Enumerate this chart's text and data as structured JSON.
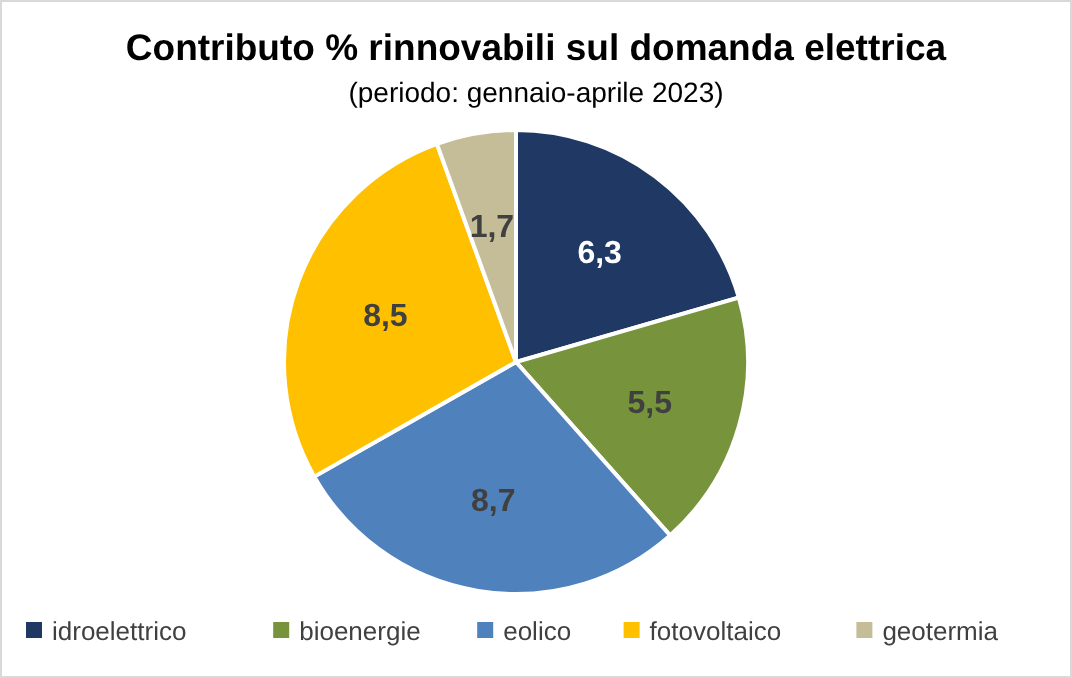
{
  "chart_data": {
    "type": "pie",
    "title": "Contributo  % rinnovabili sul domanda elettrica",
    "subtitle": "(periodo: gennaio-aprile 2023)",
    "categories": [
      "idroelettrico",
      "bioenergie",
      "eolico",
      "fotovoltaico",
      "geotermia"
    ],
    "values": [
      6.3,
      5.5,
      8.7,
      8.5,
      1.7
    ],
    "value_labels": [
      "6,3",
      "5,5",
      "8,7",
      "8,5",
      "1,7"
    ],
    "colors": [
      "#1f3864",
      "#77933c",
      "#4f81bd",
      "#ffc000",
      "#c4bd97"
    ],
    "legend": "bottom"
  }
}
